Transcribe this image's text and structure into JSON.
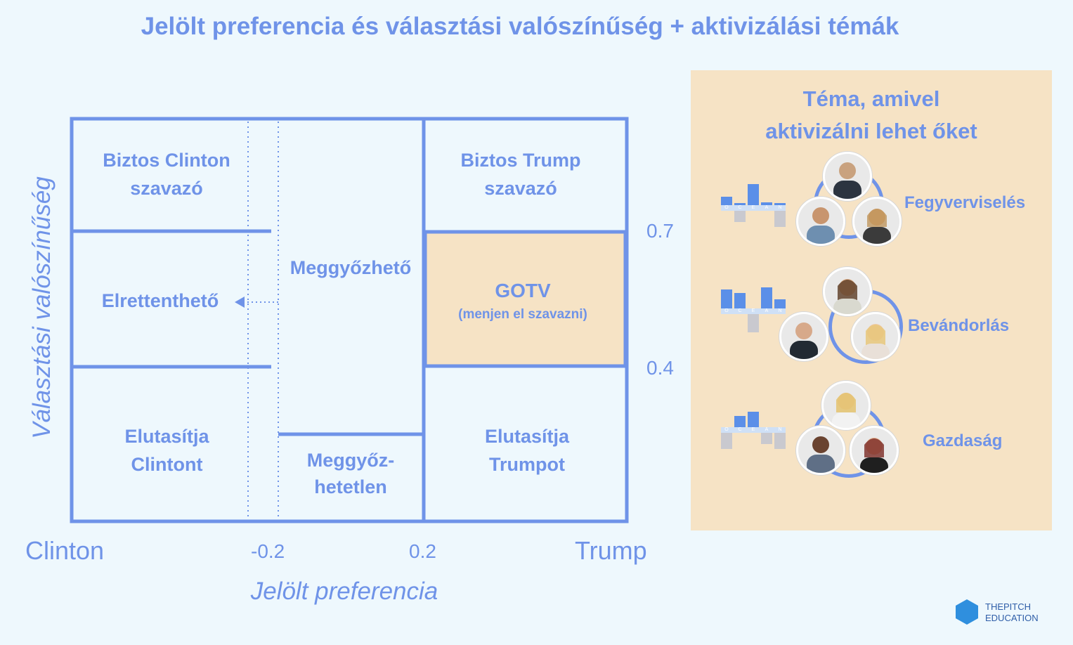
{
  "title": "Jelölt preferencia és választási valószínűség + aktivizálási témák",
  "chart": {
    "y_axis_title": "Választási valószínűség",
    "x_axis_title": "Jelölt preferencia",
    "x_left_label": "Clinton",
    "x_right_label": "Trump",
    "x_ticks": [
      "-0.2",
      "0.2"
    ],
    "y_ticks": [
      "0.7",
      "0.4"
    ],
    "cells": {
      "sure_clinton": "Biztos Clinton szavazó",
      "deterrable": "Elrettenthető",
      "rejects_clinton": "Elutasítja Clintont",
      "persuadable": "Meggyőzhető",
      "unpersuadable_1": "Meggyőz-",
      "unpersuadable_2": "hetetlen",
      "sure_trump": "Biztos Trump szavazó",
      "gotv": "GOTV",
      "gotv_sub": "(menjen el szavazni)",
      "rejects_trump": "Elutasítja Trumpot"
    },
    "gotv_color": "#f6e3c5",
    "line_color": "#6f93e8"
  },
  "panel": {
    "title_line1": "Téma, amivel",
    "title_line2": "aktivizálni lehet őket",
    "background": "#f6e3c5",
    "ocean_letters": [
      "O",
      "C",
      "E",
      "A",
      "N"
    ],
    "topics": [
      {
        "label": "Fegyverviselés",
        "ocean_up": [
          0.4,
          0.1,
          1.0,
          0.15,
          0.1
        ],
        "ocean_down": [
          0.0,
          0.6,
          0.0,
          0.0,
          0.9
        ]
      },
      {
        "label": "Bevándorlás",
        "ocean_up": [
          0.9,
          0.75,
          0.0,
          1.0,
          0.45
        ],
        "ocean_down": [
          0.0,
          0.0,
          1.0,
          0.0,
          0.0
        ]
      },
      {
        "label": "Gazdaság",
        "ocean_up": [
          0.0,
          0.55,
          0.75,
          0.0,
          0.0
        ],
        "ocean_down": [
          0.9,
          0.0,
          0.0,
          0.6,
          0.9
        ]
      }
    ]
  },
  "logo": {
    "line1": "THEPITCH",
    "line2": "EDUCATION"
  }
}
